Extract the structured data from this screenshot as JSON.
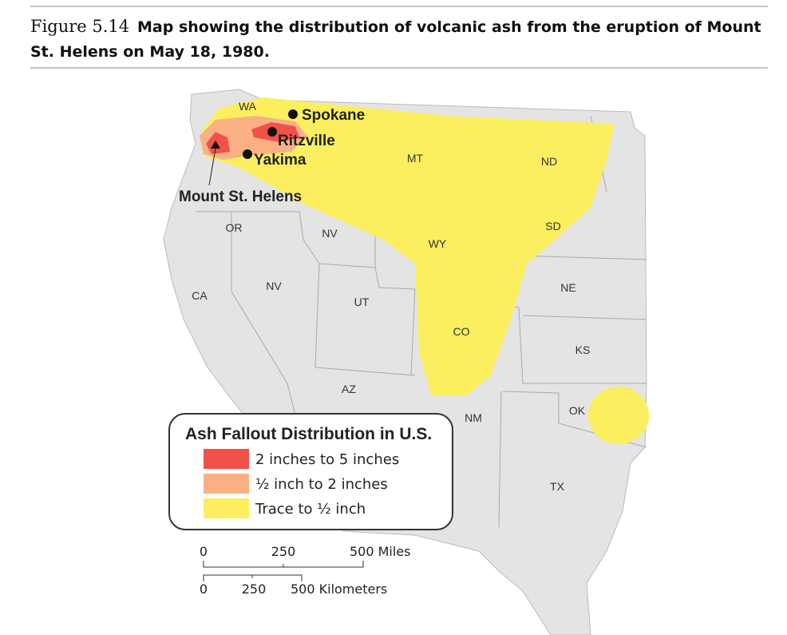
{
  "figure": {
    "label": "Figure 5.14",
    "caption_line1": "Map showing the distribution of volcanic ash from the eruption of Mount",
    "caption_line2": "St. Helens on May 18, 1980."
  },
  "map": {
    "state_labels": [
      "WA",
      "OR",
      "CA",
      "NV",
      "NV",
      "MT",
      "ND",
      "SD",
      "WY",
      "NE",
      "UT",
      "CO",
      "KS",
      "AZ",
      "NM",
      "OK",
      "TX"
    ],
    "places": [
      "Spokane",
      "Ritzville",
      "Yakima",
      "Mount St. Helens"
    ],
    "legend": {
      "title": "Ash Fallout Distribution in U.S.",
      "items": [
        {
          "label": "2 inches to 5 inches",
          "color": "#f0524a"
        },
        {
          "label": "½ inch to 2 inches",
          "color": "#f9b184"
        },
        {
          "label": "Trace to ½ inch",
          "color": "#fbef5f"
        }
      ]
    },
    "scale": {
      "miles": [
        "0",
        "250",
        "500 Miles"
      ],
      "kilometers": [
        "0",
        "250",
        "500 Kilometers"
      ]
    }
  }
}
